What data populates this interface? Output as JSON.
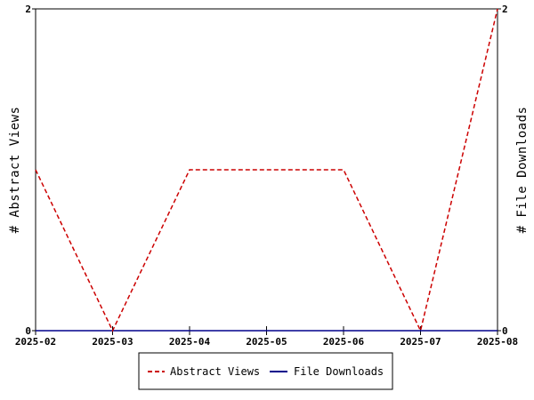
{
  "chart_data": {
    "type": "line",
    "title": "",
    "x": [
      "2025-02",
      "2025-03",
      "2025-04",
      "2025-05",
      "2025-06",
      "2025-07",
      "2025-08"
    ],
    "series": [
      {
        "name": "Abstract Views",
        "axis": "left",
        "style": "dashed",
        "color": "#cc0000",
        "values": [
          1,
          0,
          1,
          1,
          1,
          0,
          2
        ]
      },
      {
        "name": "File Downloads",
        "axis": "right",
        "style": "solid",
        "color": "#00008b",
        "values": [
          0,
          0,
          0,
          0,
          0,
          0,
          0
        ]
      }
    ],
    "ylabel_left": "# Abstract Views",
    "ylabel_right": "# File Downloads",
    "ylim_left": [
      0,
      2
    ],
    "ylim_right": [
      0,
      2
    ],
    "yticks_left": [
      "0",
      "2"
    ],
    "yticks_right": [
      "0",
      "2"
    ],
    "grid": false,
    "legend_position": "bottom-center"
  }
}
